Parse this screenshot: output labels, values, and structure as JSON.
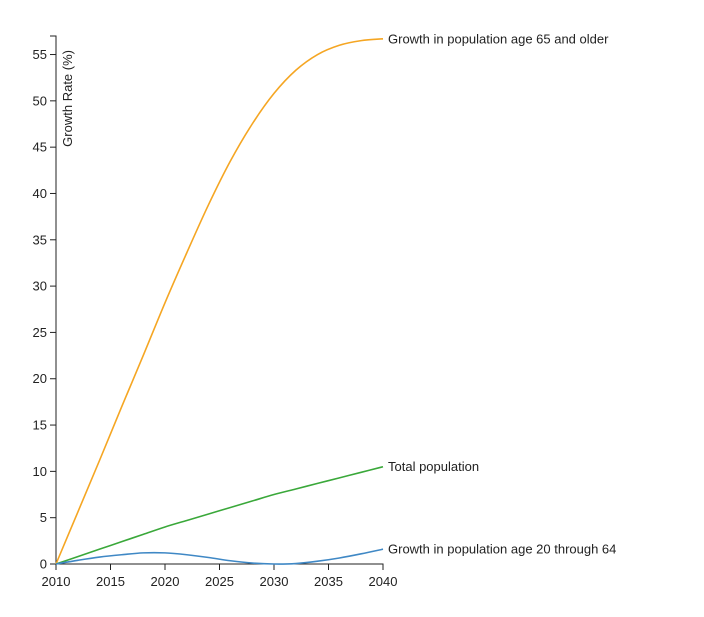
{
  "chart_data": {
    "type": "line",
    "title": "",
    "xlabel": "",
    "ylabel": "Growth Rate (%)",
    "xlim": [
      2010,
      2040
    ],
    "ylim": [
      0,
      57
    ],
    "x_ticks": [
      "2010",
      "2015",
      "2020",
      "2025",
      "2030",
      "2035",
      "2040"
    ],
    "y_ticks": [
      "0",
      "5",
      "10",
      "15",
      "20",
      "25",
      "30",
      "35",
      "40",
      "45",
      "50",
      "55"
    ],
    "grid": false,
    "legend": "inline labels at line ends",
    "x": [
      2010,
      2012,
      2014,
      2016,
      2018,
      2020,
      2022,
      2024,
      2026,
      2028,
      2030,
      2032,
      2034,
      2036,
      2038,
      2040
    ],
    "series": [
      {
        "name": "Growth in population age 65 and older",
        "color": "#f5a623",
        "values": [
          0,
          5.6,
          11.2,
          16.9,
          22.5,
          28.2,
          33.6,
          38.8,
          43.5,
          47.5,
          50.8,
          53.3,
          55.0,
          56.0,
          56.5,
          56.7
        ]
      },
      {
        "name": "Total population",
        "color": "#3aa83a",
        "values": [
          0,
          0.8,
          1.6,
          2.4,
          3.2,
          4.0,
          4.7,
          5.4,
          6.1,
          6.8,
          7.5,
          8.1,
          8.7,
          9.3,
          9.9,
          10.5
        ]
      },
      {
        "name": "Growth in population age 20 through 64",
        "color": "#3f88c5",
        "values": [
          0,
          0.4,
          0.75,
          1.0,
          1.2,
          1.2,
          1.0,
          0.7,
          0.35,
          0.1,
          0.0,
          0.05,
          0.3,
          0.65,
          1.1,
          1.6
        ]
      }
    ]
  }
}
